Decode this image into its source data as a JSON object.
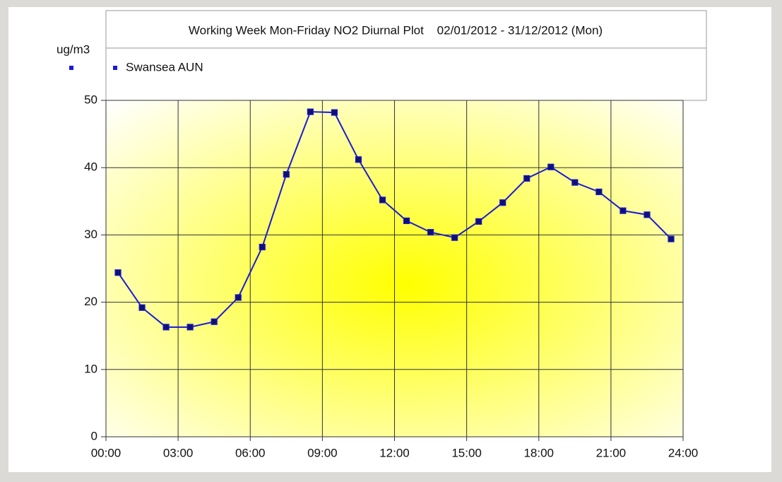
{
  "chart_data": {
    "type": "line",
    "title": "Working Week Mon-Friday NO2 Diurnal Plot    02/01/2012 - 31/12/2012 (Mon)",
    "y_label": "ug/m3",
    "x": [
      0.5,
      1.5,
      2.5,
      3.5,
      4.5,
      5.5,
      6.5,
      7.5,
      8.5,
      9.5,
      10.5,
      11.5,
      12.5,
      13.5,
      14.5,
      15.5,
      16.5,
      17.5,
      18.5,
      19.5,
      20.5,
      21.5,
      22.5,
      23.5
    ],
    "series": [
      {
        "name": "Swansea AUN",
        "color": "#1a1ad6",
        "values": [
          24.4,
          19.2,
          16.3,
          16.3,
          17.1,
          20.7,
          28.2,
          39.0,
          48.3,
          48.2,
          41.2,
          35.2,
          32.1,
          30.4,
          29.6,
          32.0,
          34.8,
          38.4,
          40.1,
          37.8,
          36.4,
          33.6,
          33.0,
          29.4
        ]
      }
    ],
    "xlim": [
      0,
      24
    ],
    "xticks": [
      {
        "value": 0,
        "label": "00:00"
      },
      {
        "value": 3,
        "label": "03:00"
      },
      {
        "value": 6,
        "label": "06:00"
      },
      {
        "value": 9,
        "label": "09:00"
      },
      {
        "value": 12,
        "label": "12:00"
      },
      {
        "value": 15,
        "label": "15:00"
      },
      {
        "value": 18,
        "label": "18:00"
      },
      {
        "value": 21,
        "label": "21:00"
      },
      {
        "value": 24,
        "label": "24:00"
      }
    ],
    "ylim": [
      0,
      50
    ],
    "yticks": [
      0,
      10,
      20,
      30,
      40,
      50
    ],
    "grid": true
  }
}
